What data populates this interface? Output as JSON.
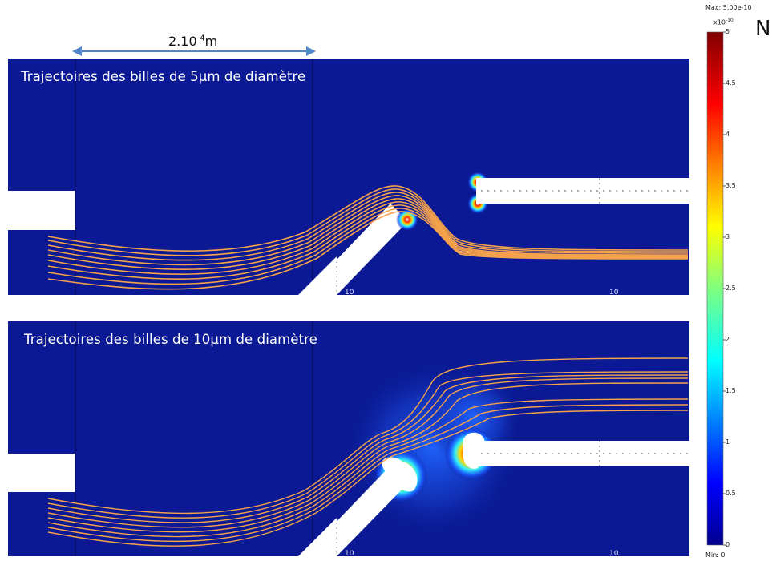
{
  "scale_bar": {
    "base": "2.10",
    "exp": "-4",
    "unit": "m"
  },
  "unit_label": "N",
  "panels": [
    {
      "title": "Trajectoires des billes de 5µm de diamètre"
    },
    {
      "title": "Trajectoires des billes de 10µm de diamètre"
    }
  ],
  "colorbar": {
    "max_label": "Max: 5.00e-10",
    "min_label": "Min: 0",
    "multiplier": "x10",
    "multiplier_exp": "-10",
    "ticks": [
      "5",
      "4.5",
      "4",
      "3.5",
      "3",
      "2.5",
      "2",
      "1.5",
      "1",
      "0.5",
      "0"
    ]
  },
  "axis_marks": [
    "10",
    "10",
    "10",
    "10"
  ],
  "colors": {
    "field_background": "#0b1a94",
    "trajectory": "#f5a24b",
    "scale_arrow": "#4f89c9"
  }
}
